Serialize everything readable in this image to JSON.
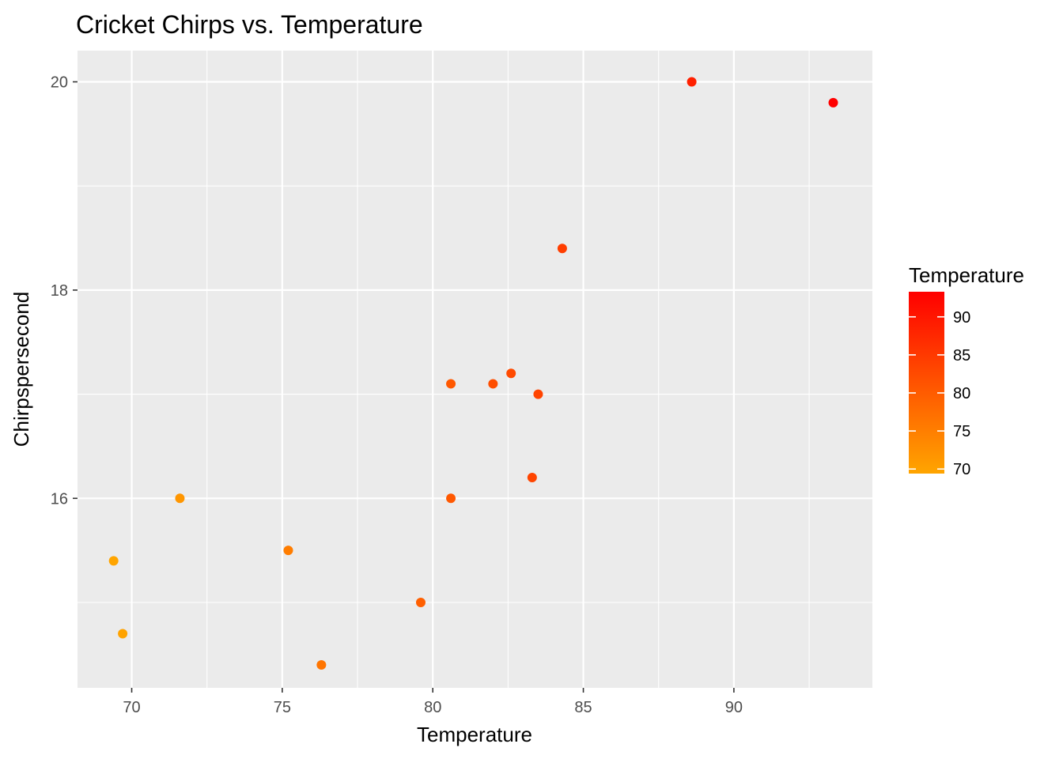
{
  "chart_data": {
    "type": "scatter",
    "title": "Cricket Chirps vs. Temperature",
    "xlabel": "Temperature",
    "ylabel": "Chirpspersecond",
    "xlim": [
      68.2,
      94.6
    ],
    "ylim": [
      14.18,
      20.3
    ],
    "x_ticks": [
      70,
      75,
      80,
      85,
      90
    ],
    "y_ticks": [
      16,
      18,
      20
    ],
    "grid": true,
    "background": "#ebebeb",
    "grid_color": "#ffffff",
    "points": [
      {
        "x": 88.6,
        "y": 20.0
      },
      {
        "x": 71.6,
        "y": 16.0
      },
      {
        "x": 93.3,
        "y": 19.8
      },
      {
        "x": 84.3,
        "y": 18.4
      },
      {
        "x": 80.6,
        "y": 17.1
      },
      {
        "x": 75.2,
        "y": 15.5
      },
      {
        "x": 69.7,
        "y": 14.7
      },
      {
        "x": 82.0,
        "y": 17.1
      },
      {
        "x": 69.4,
        "y": 15.4
      },
      {
        "x": 83.3,
        "y": 16.2
      },
      {
        "x": 79.6,
        "y": 15.0
      },
      {
        "x": 82.6,
        "y": 17.2
      },
      {
        "x": 80.6,
        "y": 16.0
      },
      {
        "x": 83.5,
        "y": 17.0
      },
      {
        "x": 76.3,
        "y": 14.4
      }
    ],
    "color_scale": {
      "variable": "Temperature",
      "title": "Temperature",
      "low_color": "#ffa500",
      "high_color": "#ff0000",
      "range": [
        69.4,
        93.3
      ],
      "ticks": [
        70,
        75,
        80,
        85,
        90
      ],
      "position": "right"
    }
  }
}
